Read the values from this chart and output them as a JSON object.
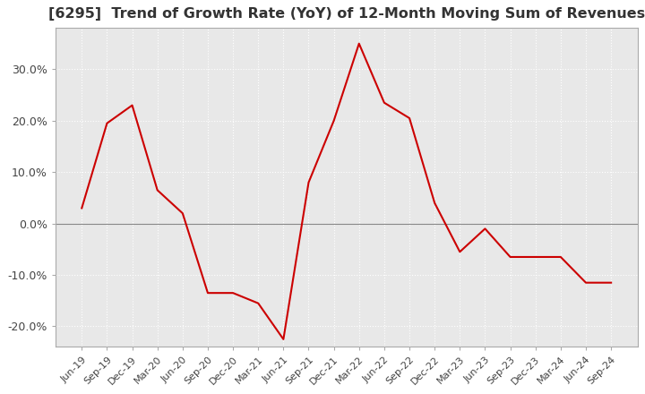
{
  "title": "[6295]  Trend of Growth Rate (YoY) of 12-Month Moving Sum of Revenues",
  "title_fontsize": 11.5,
  "line_color": "#cc0000",
  "background_color": "#ffffff",
  "plot_bg_color": "#e8e8e8",
  "grid_color": "#ffffff",
  "grid_style": "dotted",
  "ylim": [
    -24,
    38
  ],
  "yticks": [
    -20,
    -10,
    0,
    10,
    20,
    30
  ],
  "ytick_labels": [
    "-20.0%",
    "-10.0%",
    "0.0%",
    "10.0%",
    "20.0%",
    "30.0%"
  ],
  "dates": [
    "Jun-19",
    "Sep-19",
    "Dec-19",
    "Mar-20",
    "Jun-20",
    "Sep-20",
    "Dec-20",
    "Mar-21",
    "Jun-21",
    "Sep-21",
    "Dec-21",
    "Mar-22",
    "Jun-22",
    "Sep-22",
    "Dec-22",
    "Mar-23",
    "Jun-23",
    "Sep-23",
    "Dec-23",
    "Mar-24",
    "Jun-24",
    "Sep-24"
  ],
  "values": [
    3.0,
    19.5,
    23.0,
    6.5,
    2.0,
    -13.5,
    -13.5,
    -15.5,
    -22.5,
    8.0,
    20.0,
    35.0,
    23.5,
    20.5,
    4.0,
    -5.5,
    -1.0,
    -6.5,
    -6.5,
    -6.5,
    -11.5,
    -11.5
  ]
}
